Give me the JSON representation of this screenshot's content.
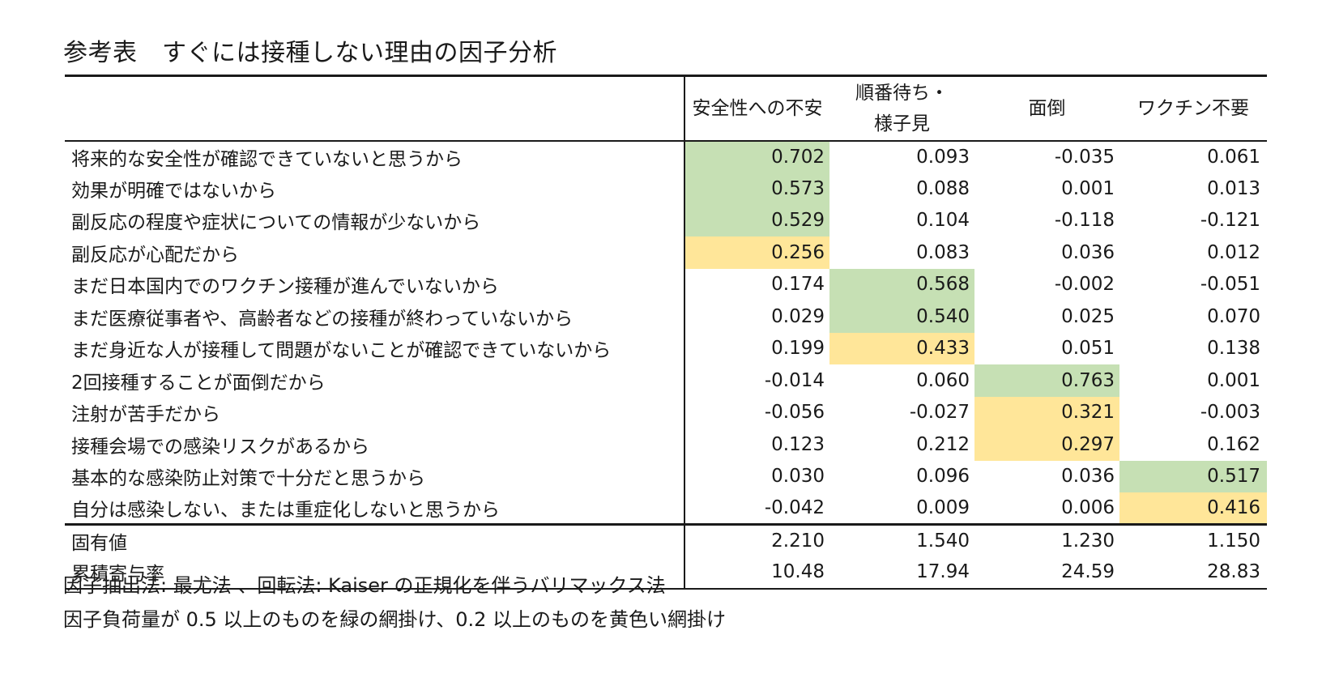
{
  "title": "参考表　すぐには接種しない理由の因子分析",
  "table": {
    "header_corner": "",
    "columns": [
      {
        "label_lines": [
          "安全性への不安"
        ]
      },
      {
        "label_lines": [
          "順番待ち・",
          "様子見"
        ]
      },
      {
        "label_lines": [
          "面倒"
        ]
      },
      {
        "label_lines": [
          "ワクチン不要"
        ]
      }
    ],
    "rows": [
      {
        "label": "将来的な安全性が確認できていないと思うから",
        "values": [
          "0.702",
          "0.093",
          "-0.035",
          "0.061"
        ],
        "highlight": [
          "green",
          "",
          "",
          ""
        ]
      },
      {
        "label": "効果が明確ではないから",
        "values": [
          "0.573",
          "0.088",
          "0.001",
          "0.013"
        ],
        "highlight": [
          "green",
          "",
          "",
          ""
        ]
      },
      {
        "label": "副反応の程度や症状についての情報が少ないから",
        "values": [
          "0.529",
          "0.104",
          "-0.118",
          "-0.121"
        ],
        "highlight": [
          "green",
          "",
          "",
          ""
        ]
      },
      {
        "label": "副反応が心配だから",
        "values": [
          "0.256",
          "0.083",
          "0.036",
          "0.012"
        ],
        "highlight": [
          "yellow",
          "",
          "",
          ""
        ]
      },
      {
        "label": "まだ日本国内でのワクチン接種が進んでいないから",
        "values": [
          "0.174",
          "0.568",
          "-0.002",
          "-0.051"
        ],
        "highlight": [
          "",
          "green",
          "",
          ""
        ]
      },
      {
        "label": "まだ医療従事者や、高齢者などの接種が終わっていないから",
        "values": [
          "0.029",
          "0.540",
          "0.025",
          "0.070"
        ],
        "highlight": [
          "",
          "green",
          "",
          ""
        ]
      },
      {
        "label": "まだ身近な人が接種して問題がないことが確認できていないから",
        "values": [
          "0.199",
          "0.433",
          "0.051",
          "0.138"
        ],
        "highlight": [
          "",
          "yellow",
          "",
          ""
        ]
      },
      {
        "label": "2回接種することが面倒だから",
        "values": [
          "-0.014",
          "0.060",
          "0.763",
          "0.001"
        ],
        "highlight": [
          "",
          "",
          "green",
          ""
        ]
      },
      {
        "label": "注射が苦手だから",
        "values": [
          "-0.056",
          "-0.027",
          "0.321",
          "-0.003"
        ],
        "highlight": [
          "",
          "",
          "yellow",
          ""
        ]
      },
      {
        "label": "接種会場での感染リスクがあるから",
        "values": [
          "0.123",
          "0.212",
          "0.297",
          "0.162"
        ],
        "highlight": [
          "",
          "",
          "yellow",
          ""
        ]
      },
      {
        "label": "基本的な感染防止対策で十分だと思うから",
        "values": [
          "0.030",
          "0.096",
          "0.036",
          "0.517"
        ],
        "highlight": [
          "",
          "",
          "",
          "green"
        ]
      },
      {
        "label": "自分は感染しない、または重症化しないと思うから",
        "values": [
          "-0.042",
          "0.009",
          "0.006",
          "0.416"
        ],
        "highlight": [
          "",
          "",
          "",
          "yellow"
        ]
      }
    ],
    "summary_rows": [
      {
        "label": "固有値",
        "values": [
          "2.210",
          "1.540",
          "1.230",
          "1.150"
        ]
      },
      {
        "label": "累積寄与率",
        "values": [
          "10.48",
          "17.94",
          "24.59",
          "28.83"
        ]
      }
    ]
  },
  "notes": [
    "因子抽出法: 最尤法 、回転法: Kaiser の正規化を伴うバリマックス法",
    "因子負荷量が 0.5 以上のものを緑の網掛け、0.2 以上のものを黄色い網掛け"
  ],
  "colors": {
    "green": "#c6e0b4",
    "yellow": "#ffe699"
  }
}
